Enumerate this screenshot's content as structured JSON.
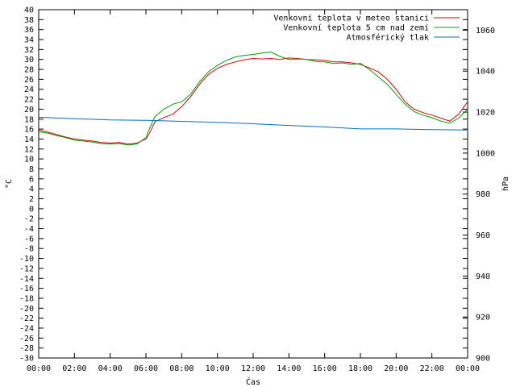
{
  "chart_data": {
    "type": "line",
    "xlabel": "Čas",
    "ylabel": "°C",
    "y2label": "hPa",
    "xlim": [
      "00:00",
      "24:00"
    ],
    "ylim": [
      -30,
      40
    ],
    "y2lim": [
      900,
      1070
    ],
    "x_ticks": [
      "00:00",
      "02:00",
      "04:00",
      "06:00",
      "08:00",
      "10:00",
      "12:00",
      "14:00",
      "16:00",
      "18:00",
      "20:00",
      "22:00",
      "00:00"
    ],
    "y_ticks": [
      -30,
      -28,
      -26,
      -24,
      -22,
      -20,
      -18,
      -16,
      -14,
      -12,
      -10,
      -8,
      -6,
      -4,
      -2,
      0,
      2,
      4,
      6,
      8,
      10,
      12,
      14,
      16,
      18,
      20,
      22,
      24,
      26,
      28,
      30,
      32,
      34,
      36,
      38,
      40
    ],
    "y2_ticks": [
      900,
      920,
      940,
      960,
      980,
      1000,
      1020,
      1040,
      1060
    ],
    "legend_position": "top-right",
    "grid": false,
    "series": [
      {
        "name": "Venkovní teplota v meteo stanici",
        "color": "#e00000",
        "axis": "left",
        "x_hours": [
          0,
          0.5,
          1,
          1.5,
          2,
          2.5,
          3,
          3.5,
          4,
          4.5,
          5,
          5.5,
          6,
          6.25,
          6.5,
          7,
          7.5,
          8,
          8.5,
          9,
          9.5,
          10,
          10.5,
          11,
          11.5,
          12,
          12.5,
          13,
          13.5,
          14,
          14.5,
          15,
          15.5,
          16,
          16.5,
          17,
          17.5,
          18,
          18.5,
          19,
          19.5,
          20,
          20.5,
          21,
          21.5,
          22,
          22.5,
          23,
          23.5,
          24
        ],
        "values": [
          15.8,
          15.4,
          14.9,
          14.4,
          14.0,
          13.8,
          13.6,
          13.3,
          13.2,
          13.3,
          13.0,
          13.2,
          14.0,
          15.5,
          17.5,
          18.3,
          19.0,
          20.5,
          22.5,
          25.0,
          27.0,
          28.2,
          29.0,
          29.5,
          29.9,
          30.2,
          30.1,
          30.2,
          30.0,
          30.3,
          30.2,
          30.0,
          29.9,
          29.8,
          29.5,
          29.5,
          29.3,
          29.0,
          28.3,
          27.5,
          26.0,
          24.0,
          21.5,
          20.0,
          19.3,
          18.8,
          18.2,
          17.6,
          19.0,
          21.5
        ]
      },
      {
        "name": "Venkovní teplota 5 cm nad zemí",
        "color": "#00a000",
        "axis": "left",
        "x_hours": [
          0,
          0.5,
          1,
          1.5,
          2,
          2.5,
          3,
          3.5,
          4,
          4.5,
          5,
          5.5,
          6,
          6.25,
          6.5,
          7,
          7.5,
          8,
          8.5,
          9,
          9.5,
          10,
          10.5,
          11,
          11.5,
          12,
          12.5,
          13,
          13.5,
          14,
          14.5,
          15,
          15.5,
          16,
          16.5,
          17,
          17.5,
          18,
          18.5,
          19,
          19.5,
          20,
          20.5,
          21,
          21.5,
          22,
          22.5,
          23,
          23.5,
          24
        ],
        "values": [
          15.5,
          15.2,
          14.7,
          14.3,
          13.8,
          13.6,
          13.4,
          13.1,
          13.0,
          13.1,
          12.8,
          13.0,
          14.3,
          16.5,
          18.5,
          20.0,
          21.0,
          21.5,
          23.0,
          25.5,
          27.5,
          28.8,
          29.8,
          30.5,
          30.8,
          31.0,
          31.3,
          31.5,
          30.6,
          30.0,
          30.1,
          30.0,
          29.6,
          29.5,
          29.2,
          29.3,
          29.0,
          29.2,
          28.0,
          26.5,
          25.0,
          23.0,
          21.0,
          19.5,
          18.8,
          18.3,
          17.6,
          17.2,
          18.2,
          20.0
        ]
      },
      {
        "name": "Atmosférický tlak",
        "color": "#0070c0",
        "axis": "right",
        "x_hours": [
          0,
          2,
          4,
          6,
          8,
          10,
          12,
          14,
          16,
          18,
          20,
          22,
          24
        ],
        "values": [
          1017.5,
          1016.8,
          1016.2,
          1016.0,
          1015.5,
          1015.0,
          1014.3,
          1013.5,
          1012.8,
          1011.8,
          1011.8,
          1011.5,
          1011.3
        ]
      }
    ]
  }
}
